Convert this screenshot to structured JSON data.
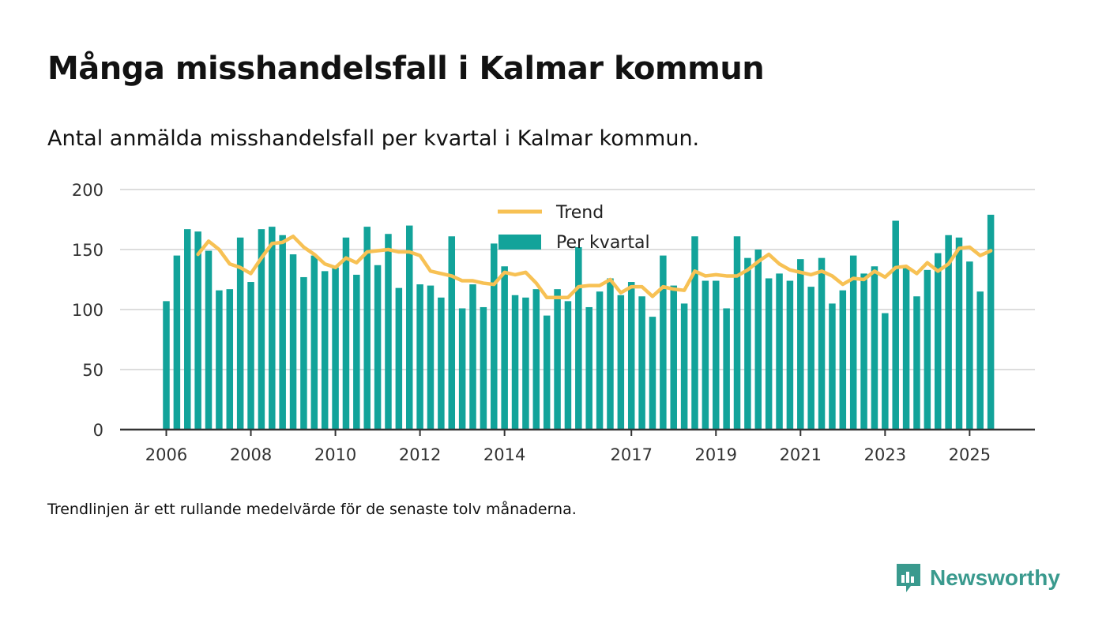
{
  "title": "Många misshandelsfall i Kalmar kommun",
  "subtitle": "Antal anmälda misshandelsfall per kvartal i Kalmar kommun.",
  "footnote": "Trendlinjen är ett rullande medelvärde för de senaste tolv månaderna.",
  "brand": {
    "name": "Newsworthy"
  },
  "colors": {
    "bar": "#12a39a",
    "trend": "#f7c154",
    "grid": "#dddddd",
    "axis": "#333333"
  },
  "chart_data": {
    "type": "bar",
    "title": "Många misshandelsfall i Kalmar kommun",
    "xlabel": "",
    "ylabel": "",
    "ylim": [
      0,
      200
    ],
    "yticks": [
      0,
      50,
      100,
      150,
      200
    ],
    "xticks": [
      {
        "label": "2006",
        "index": 0
      },
      {
        "label": "2008",
        "index": 8
      },
      {
        "label": "2010",
        "index": 16
      },
      {
        "label": "2012",
        "index": 24
      },
      {
        "label": "2014",
        "index": 32
      },
      {
        "label": "2017",
        "index": 44
      },
      {
        "label": "2019",
        "index": 52
      },
      {
        "label": "2021",
        "index": 60
      },
      {
        "label": "2023",
        "index": 68
      },
      {
        "label": "2025",
        "index": 76
      }
    ],
    "legend": [
      "Trend",
      "Per kvartal"
    ],
    "legend_position": "top-center",
    "series": [
      {
        "name": "Per kvartal",
        "type": "bar",
        "values": [
          107,
          145,
          167,
          165,
          149,
          116,
          117,
          160,
          123,
          167,
          169,
          162,
          146,
          127,
          145,
          132,
          135,
          160,
          129,
          169,
          137,
          163,
          118,
          170,
          121,
          120,
          110,
          161,
          101,
          121,
          102,
          155,
          136,
          112,
          110,
          117,
          95,
          117,
          107,
          152,
          102,
          115,
          126,
          112,
          123,
          111,
          94,
          145,
          120,
          105,
          161,
          124,
          124,
          101,
          161,
          143,
          150,
          126,
          130,
          124,
          142,
          119,
          143,
          105,
          116,
          145,
          130,
          136,
          97,
          174,
          135,
          111,
          133,
          147,
          162,
          160,
          140,
          115,
          179
        ]
      },
      {
        "name": "Trend",
        "type": "line",
        "start_index": 3,
        "values": [
          146,
          157,
          150,
          138,
          135,
          130,
          143,
          155,
          156,
          161,
          152,
          146,
          138,
          135,
          143,
          139,
          148,
          149,
          150,
          148,
          148,
          145,
          132,
          130,
          128,
          124,
          124,
          122,
          121,
          131,
          129,
          131,
          122,
          110,
          110,
          110,
          119,
          120,
          120,
          125,
          114,
          119,
          119,
          111,
          119,
          117,
          116,
          132,
          128,
          129,
          128,
          128,
          133,
          140,
          146,
          138,
          133,
          131,
          129,
          132,
          128,
          121,
          126,
          125,
          132,
          127,
          135,
          136,
          130,
          139,
          132,
          138,
          151,
          152,
          145,
          149
        ]
      }
    ]
  }
}
